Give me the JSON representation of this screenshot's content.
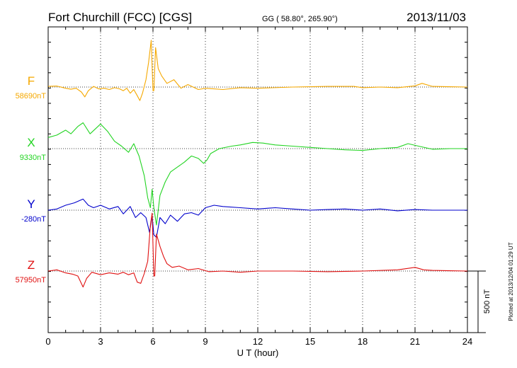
{
  "header": {
    "station": "Fort Churchill (FCC)  [CGS]",
    "coords": "GG ( 58.80°, 265.90°)",
    "date": "2013/11/03"
  },
  "footer": {
    "plotted": "Plotted at 2013/12/04 01:29 UT"
  },
  "chart_data": {
    "type": "line",
    "xlabel": "U T (hour)",
    "xlim": [
      0,
      24
    ],
    "xticks": [
      0,
      3,
      6,
      9,
      12,
      15,
      18,
      21,
      24
    ],
    "grid": "vertical dotted at 3-hour intervals",
    "scale_bar": {
      "label": "500 nT",
      "value_nT": 500
    },
    "channels_nT_per_track": 1000,
    "series": [
      {
        "name": "F",
        "baseline": "58690nT",
        "color": "#f5a800",
        "points": [
          [
            0,
            5
          ],
          [
            0.5,
            8
          ],
          [
            1,
            -10
          ],
          [
            1.3,
            -18
          ],
          [
            1.6,
            -10
          ],
          [
            1.9,
            -40
          ],
          [
            2.1,
            -80
          ],
          [
            2.3,
            -30
          ],
          [
            2.6,
            5
          ],
          [
            2.9,
            -15
          ],
          [
            3.2,
            -10
          ],
          [
            3.5,
            -20
          ],
          [
            3.8,
            -5
          ],
          [
            4.1,
            -15
          ],
          [
            4.3,
            -30
          ],
          [
            4.5,
            -10
          ],
          [
            4.7,
            -50
          ],
          [
            4.9,
            -20
          ],
          [
            5.1,
            -70
          ],
          [
            5.25,
            -110
          ],
          [
            5.4,
            -50
          ],
          [
            5.6,
            60
          ],
          [
            5.75,
            200
          ],
          [
            5.9,
            380
          ],
          [
            6.0,
            -30
          ],
          [
            6.05,
            -30
          ],
          [
            6.15,
            320
          ],
          [
            6.3,
            150
          ],
          [
            6.5,
            90
          ],
          [
            6.8,
            30
          ],
          [
            7.2,
            60
          ],
          [
            7.6,
            -10
          ],
          [
            8.0,
            20
          ],
          [
            8.6,
            -20
          ],
          [
            9.0,
            -10
          ],
          [
            10,
            -20
          ],
          [
            11,
            -5
          ],
          [
            12,
            -10
          ],
          [
            14,
            0
          ],
          [
            16,
            5
          ],
          [
            17.5,
            5
          ],
          [
            18,
            -5
          ],
          [
            19,
            0
          ],
          [
            20,
            -5
          ],
          [
            21,
            10
          ],
          [
            21.4,
            30
          ],
          [
            22,
            5
          ],
          [
            24,
            0
          ]
        ]
      },
      {
        "name": "X",
        "baseline": "9330nT",
        "color": "#22d422",
        "points": [
          [
            0,
            90
          ],
          [
            0.5,
            110
          ],
          [
            1,
            150
          ],
          [
            1.3,
            120
          ],
          [
            1.7,
            180
          ],
          [
            2,
            210
          ],
          [
            2.4,
            120
          ],
          [
            2.7,
            160
          ],
          [
            3,
            200
          ],
          [
            3.4,
            140
          ],
          [
            3.8,
            60
          ],
          [
            4.2,
            20
          ],
          [
            4.6,
            -30
          ],
          [
            4.9,
            40
          ],
          [
            5.2,
            -60
          ],
          [
            5.5,
            -220
          ],
          [
            5.7,
            -400
          ],
          [
            5.85,
            -480
          ],
          [
            5.95,
            -330
          ],
          [
            6.05,
            -480
          ],
          [
            6.2,
            -620
          ],
          [
            6.4,
            -380
          ],
          [
            6.7,
            -270
          ],
          [
            7.0,
            -190
          ],
          [
            7.4,
            -150
          ],
          [
            7.8,
            -110
          ],
          [
            8.2,
            -60
          ],
          [
            8.6,
            -80
          ],
          [
            8.9,
            -120
          ],
          [
            9.1,
            -90
          ],
          [
            9.3,
            -40
          ],
          [
            9.8,
            0
          ],
          [
            10.5,
            20
          ],
          [
            11,
            30
          ],
          [
            11.7,
            50
          ],
          [
            12.3,
            45
          ],
          [
            13,
            30
          ],
          [
            14,
            20
          ],
          [
            15,
            10
          ],
          [
            16,
            0
          ],
          [
            17,
            -10
          ],
          [
            18,
            -15
          ],
          [
            19,
            0
          ],
          [
            20,
            10
          ],
          [
            20.6,
            40
          ],
          [
            21.2,
            20
          ],
          [
            22,
            -5
          ],
          [
            23,
            0
          ],
          [
            24,
            0
          ]
        ]
      },
      {
        "name": "Y",
        "baseline": "-280nT",
        "color": "#0000cc",
        "points": [
          [
            0,
            0
          ],
          [
            0.5,
            10
          ],
          [
            1,
            40
          ],
          [
            1.5,
            60
          ],
          [
            2,
            90
          ],
          [
            2.3,
            40
          ],
          [
            2.6,
            20
          ],
          [
            3,
            40
          ],
          [
            3.5,
            10
          ],
          [
            4,
            30
          ],
          [
            4.3,
            -30
          ],
          [
            4.7,
            30
          ],
          [
            5.0,
            -60
          ],
          [
            5.3,
            -20
          ],
          [
            5.6,
            -60
          ],
          [
            5.8,
            -180
          ],
          [
            5.95,
            -40
          ],
          [
            6.05,
            -200
          ],
          [
            6.2,
            -220
          ],
          [
            6.4,
            -60
          ],
          [
            6.7,
            -110
          ],
          [
            7.0,
            -40
          ],
          [
            7.4,
            -90
          ],
          [
            7.8,
            -30
          ],
          [
            8.2,
            -20
          ],
          [
            8.6,
            -40
          ],
          [
            9.0,
            20
          ],
          [
            9.5,
            40
          ],
          [
            10,
            30
          ],
          [
            11,
            20
          ],
          [
            12,
            10
          ],
          [
            13,
            20
          ],
          [
            14,
            10
          ],
          [
            15,
            0
          ],
          [
            16,
            5
          ],
          [
            17,
            10
          ],
          [
            18,
            0
          ],
          [
            19,
            10
          ],
          [
            20,
            -5
          ],
          [
            21,
            5
          ],
          [
            22,
            0
          ],
          [
            23,
            0
          ],
          [
            24,
            0
          ]
        ]
      },
      {
        "name": "Z",
        "baseline": "57950nT",
        "color": "#e01010",
        "points": [
          [
            0,
            0
          ],
          [
            0.5,
            10
          ],
          [
            1,
            -15
          ],
          [
            1.4,
            -25
          ],
          [
            1.7,
            -40
          ],
          [
            2.0,
            -130
          ],
          [
            2.2,
            -60
          ],
          [
            2.5,
            -10
          ],
          [
            3,
            -30
          ],
          [
            3.5,
            -15
          ],
          [
            4,
            -25
          ],
          [
            4.3,
            -10
          ],
          [
            4.6,
            -30
          ],
          [
            4.9,
            -15
          ],
          [
            5.1,
            -90
          ],
          [
            5.3,
            -100
          ],
          [
            5.5,
            -20
          ],
          [
            5.7,
            80
          ],
          [
            5.85,
            370
          ],
          [
            5.95,
            470
          ],
          [
            6.05,
            -40
          ],
          [
            6.1,
            -40
          ],
          [
            6.2,
            300
          ],
          [
            6.4,
            200
          ],
          [
            6.6,
            120
          ],
          [
            6.8,
            60
          ],
          [
            7.1,
            30
          ],
          [
            7.5,
            40
          ],
          [
            8.0,
            10
          ],
          [
            8.6,
            20
          ],
          [
            9.2,
            -5
          ],
          [
            10,
            0
          ],
          [
            11,
            -10
          ],
          [
            12,
            0
          ],
          [
            14,
            0
          ],
          [
            16,
            -5
          ],
          [
            18,
            0
          ],
          [
            20,
            10
          ],
          [
            21,
            30
          ],
          [
            21.5,
            10
          ],
          [
            22,
            5
          ],
          [
            24,
            0
          ]
        ]
      }
    ]
  }
}
